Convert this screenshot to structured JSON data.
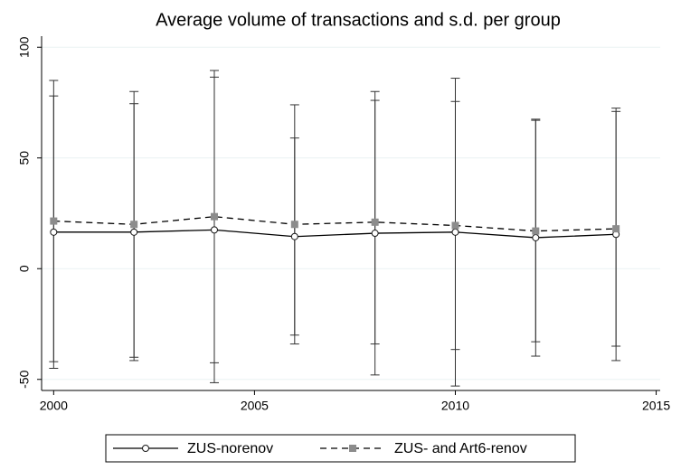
{
  "chart_data": {
    "type": "line",
    "title": "Average volume of transactions and s.d. per group",
    "x": [
      2000,
      2002,
      2004,
      2006,
      2008,
      2010,
      2012,
      2014
    ],
    "series": [
      {
        "name": "ZUS-norenov",
        "color": "#1a1a1a",
        "marker": "circle",
        "line": "solid",
        "values": [
          16.5,
          16.5,
          17.5,
          14.5,
          16,
          16.5,
          14,
          15.5
        ],
        "errors": [
          61.5,
          58,
          69,
          44.5,
          64,
          69.5,
          53.5,
          57
        ]
      },
      {
        "name": "ZUS- and Art6-renov",
        "color": "#8c8c8c",
        "marker": "square",
        "line": "dashed",
        "values": [
          21.5,
          20,
          23.5,
          20,
          21,
          19.5,
          17,
          18
        ],
        "errors": [
          63.5,
          60,
          66,
          54,
          55,
          56,
          50,
          53
        ]
      }
    ],
    "xlim": [
      1999.7,
      2015.1
    ],
    "xticks": [
      2000,
      2005,
      2010,
      2015
    ],
    "ylim": [
      -55,
      105
    ],
    "yticks": [
      -50,
      0,
      50,
      100
    ],
    "grid": true,
    "legend": "bottom"
  }
}
